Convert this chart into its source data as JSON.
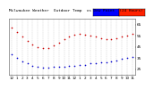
{
  "outdoor_temp": [
    62,
    58,
    54,
    50,
    47,
    45,
    44,
    44,
    46,
    49,
    52,
    54,
    56,
    57,
    56,
    55,
    54,
    53,
    52,
    52,
    53,
    54,
    55,
    57
  ],
  "dew_point": [
    38,
    35,
    32,
    30,
    28,
    27,
    26,
    26,
    27,
    27,
    27,
    28,
    28,
    29,
    29,
    30,
    30,
    31,
    31,
    32,
    33,
    34,
    35,
    36
  ],
  "hours": [
    0,
    1,
    2,
    3,
    4,
    5,
    6,
    7,
    8,
    9,
    10,
    11,
    12,
    13,
    14,
    15,
    16,
    17,
    18,
    19,
    20,
    21,
    22,
    23
  ],
  "xlabels": [
    "12",
    "1",
    "2",
    "3",
    "4",
    "5",
    "6",
    "7",
    "8",
    "9",
    "10",
    "11",
    "12",
    "1",
    "2",
    "3",
    "4",
    "5",
    "6",
    "7",
    "8",
    "9",
    "10",
    "11"
  ],
  "ylim": [
    20,
    70
  ],
  "yticks": [
    25,
    35,
    45,
    55,
    65
  ],
  "ytick_labels": [
    "25",
    "35",
    "45",
    "55",
    "65"
  ],
  "temp_color": "#cc0000",
  "dew_color": "#0000cc",
  "legend_temp_color": "#ff2200",
  "legend_dew_color": "#0000ff",
  "bg_color": "#ffffff",
  "grid_color": "#bbbbbb",
  "title_text": "Milwaukee Weather  Outdoor Temp  vs Dew Point  (24 Hours)",
  "title_fontsize": 3.2,
  "tick_fontsize": 3.0,
  "dot_size": 1.2
}
